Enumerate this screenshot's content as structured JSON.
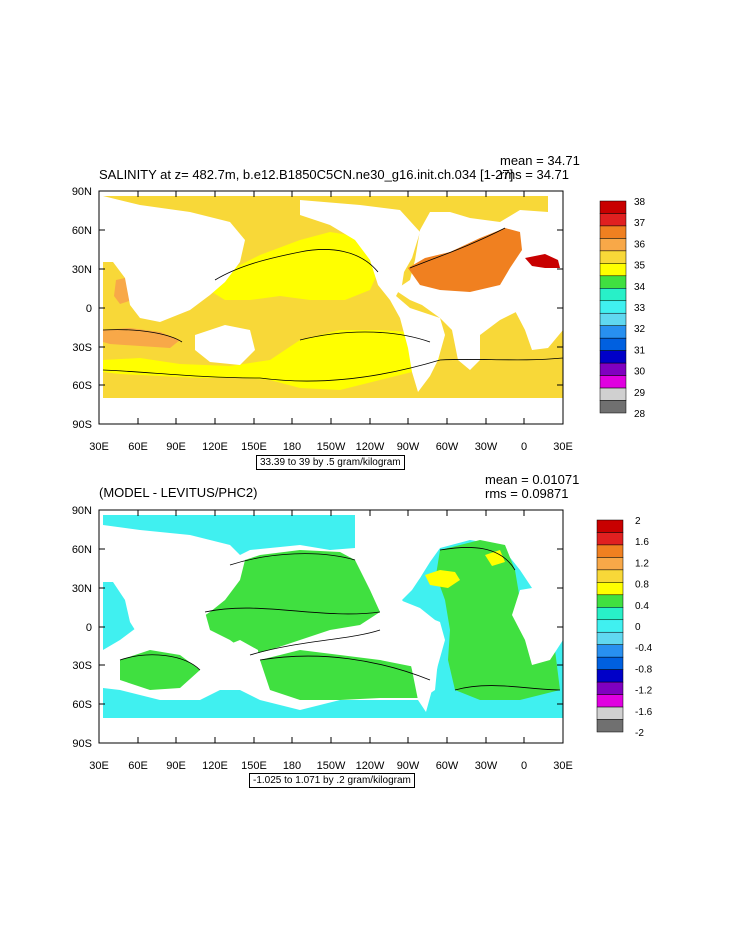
{
  "panel1": {
    "title": "SALINITY at z= 482.7m, b.e12.B1850C5CN.ne30_g16.init.ch.034 [1-27]",
    "mean": "mean = 34.71",
    "rms": "rms = 34.71",
    "caption": "33.39 to 39 by .5 gram/kilogram",
    "colorbar": {
      "labels": [
        "38",
        "37",
        "36",
        "35",
        "34",
        "33",
        "32",
        "31",
        "30",
        "29",
        "28"
      ],
      "colors": [
        "#c80000",
        "#e02020",
        "#f08020",
        "#f8a848",
        "#f8d838",
        "#ffff00",
        "#40e040",
        "#28f0c8",
        "#40f0f0",
        "#60d8f0",
        "#2890f0",
        "#0060e0",
        "#0000c8",
        "#8000c0",
        "#e000e0",
        "#d0d0d0",
        "#707070"
      ]
    }
  },
  "panel2": {
    "title": "(MODEL - LEVITUS/PHC2)",
    "mean": "mean = 0.01071",
    "rms": "rms = 0.09871",
    "caption": "-1.025 to 1.071 by .2 gram/kilogram",
    "colorbar": {
      "labels": [
        "2",
        "1.6",
        "1.2",
        "0.8",
        "0.4",
        "0",
        "-0.4",
        "-0.8",
        "-1.2",
        "-1.6",
        "-2"
      ],
      "colors": [
        "#c80000",
        "#e02020",
        "#f08020",
        "#f8a848",
        "#f8d838",
        "#ffff00",
        "#40e040",
        "#28f0c8",
        "#40f0f0",
        "#60d8f0",
        "#2890f0",
        "#0060e0",
        "#0000c8",
        "#8000c0",
        "#e000e0",
        "#d0d0d0",
        "#707070"
      ]
    }
  },
  "axes": {
    "lat_labels": [
      "90N",
      "60N",
      "30N",
      "0",
      "30S",
      "60S",
      "90S"
    ],
    "lon_labels": [
      "30E",
      "60E",
      "90E",
      "120E",
      "150E",
      "180",
      "150W",
      "120W",
      "90W",
      "60W",
      "30W",
      "0",
      "30E"
    ]
  }
}
